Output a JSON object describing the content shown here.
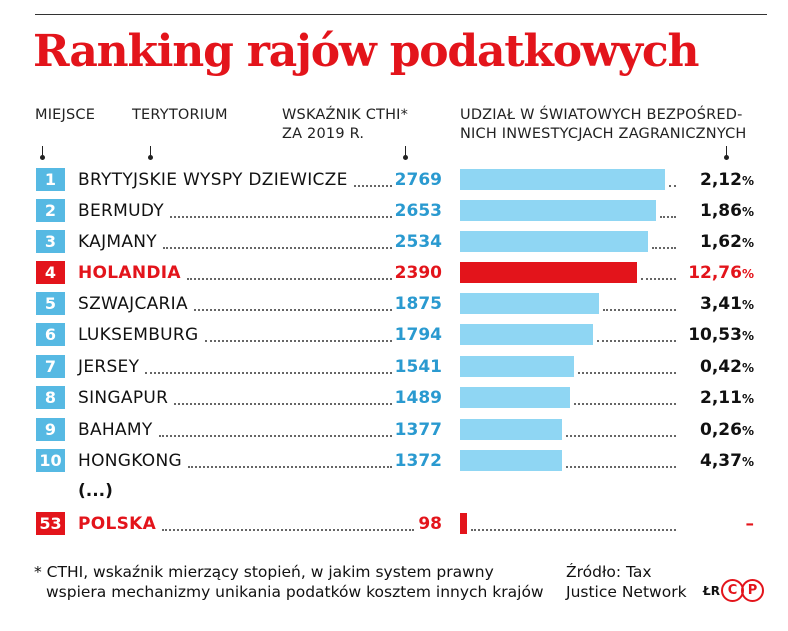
{
  "title": "Ranking rajów podatkowych",
  "headers": {
    "miejsce": "MIEJSCE",
    "terytorium": "TERYTORIUM",
    "cthi_line1": "WSKAŹNIK CTHI*",
    "cthi_line2": "ZA 2019 R.",
    "share_line1": "UDZIAŁ W ŚWIATOWYCH BEZPOŚRED-",
    "share_line2": "NICH INWESTYCJACH ZAGRANICZNYCH"
  },
  "ellipsis": "(...)",
  "footnote_line1": "* CTHI, wskaźnik mierzący stopień, w jakim system prawny",
  "footnote_line2": "wspiera mechanizmy unikania podatków kosztem innych krajów",
  "source_line1": "Źródło: Tax",
  "source_line2": "Justice Network",
  "credit_initials": "ŁR",
  "logo_letters": [
    "C",
    "P"
  ],
  "colors": {
    "accent_red": "#e3141b",
    "rank_blue": "#56b9e3",
    "cthi_blue": "#2a9ad0",
    "bar_blue": "#8fd6f3",
    "bar_red": "#e3141b"
  },
  "chart_data": {
    "type": "bar",
    "title": "Ranking rajów podatkowych",
    "categories": [
      "BRYTYJSKIE WYSPY DZIEWICZE",
      "BERMUDY",
      "KAJMANY",
      "HOLANDIA",
      "SZWAJCARIA",
      "LUKSEMBURG",
      "JERSEY",
      "SINGAPUR",
      "BAHAMY",
      "HONGKONG",
      "POLSKA"
    ],
    "ranks": [
      "1",
      "2",
      "3",
      "4",
      "5",
      "6",
      "7",
      "8",
      "9",
      "10",
      "53"
    ],
    "highlighted": [
      false,
      false,
      false,
      true,
      false,
      false,
      false,
      false,
      false,
      false,
      true
    ],
    "series": [
      {
        "name": "WSKAŹNIK CTHI* ZA 2019 R.",
        "values": [
          2769,
          2653,
          2534,
          2390,
          1875,
          1794,
          1541,
          1489,
          1377,
          1372,
          98
        ]
      },
      {
        "name": "UDZIAŁ W ŚWIATOWYCH BEZPOŚREDNICH INWESTYCJACH ZAGRANICZNYCH",
        "labels": [
          "2,12",
          "1,86",
          "1,62",
          "12,76",
          "3,41",
          "10,53",
          "0,42",
          "2,11",
          "0,26",
          "4,37",
          "–"
        ],
        "unit": "%"
      }
    ],
    "bar_series": "WSKAŹNIK CTHI* ZA 2019 R.",
    "xlim": [
      0,
      3000
    ]
  }
}
